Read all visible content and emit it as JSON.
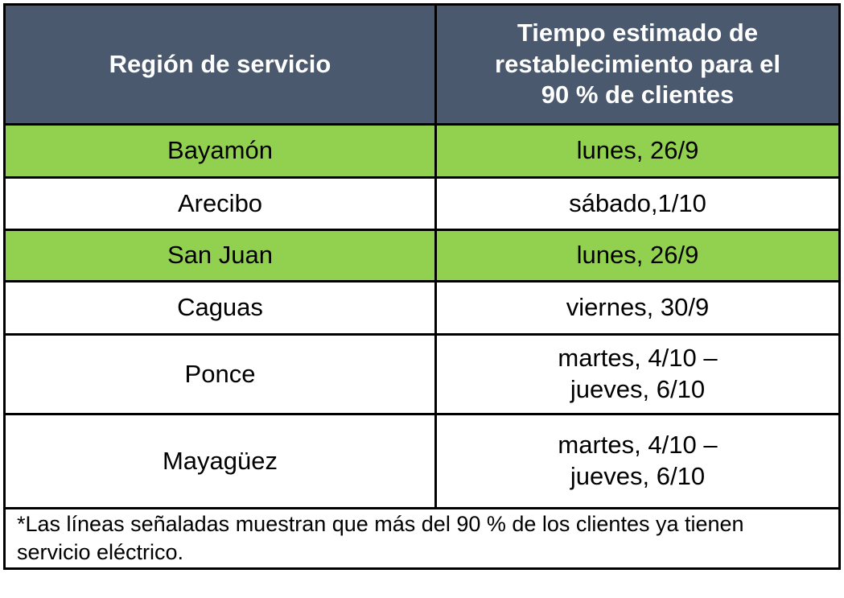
{
  "display": {
    "headers": {
      "region": "Región de servicio",
      "time": "Tiempo estimado de\nrestablecimiento para el\n90 % de clientes"
    },
    "rows": [
      {
        "region": "Bayamón",
        "time": "lunes, 26/9",
        "highlighted": true
      },
      {
        "region": "Arecibo",
        "time": "sábado,1/10",
        "highlighted": false
      },
      {
        "region": "San Juan",
        "time": "lunes, 26/9",
        "highlighted": true
      },
      {
        "region": "Caguas",
        "time": "viernes, 30/9",
        "highlighted": false
      },
      {
        "region": "Ponce",
        "time": "martes, 4/10 –\njueves, 6/10",
        "highlighted": false
      },
      {
        "region": "Mayagüez",
        "time": "martes, 4/10 –\njueves, 6/10",
        "highlighted": false
      }
    ],
    "footnote": "*Las líneas señaladas muestran que más del 90 % de los clientes ya tienen\nservicio eléctrico."
  },
  "chart_data": {
    "type": "table",
    "columns": [
      "Región de servicio",
      "Tiempo estimado de restablecimiento para el 90 % de clientes"
    ],
    "rows": [
      [
        "Bayamón",
        "lunes, 26/9"
      ],
      [
        "Arecibo",
        "sábado,1/10"
      ],
      [
        "San Juan",
        "lunes, 26/9"
      ],
      [
        "Caguas",
        "viernes, 30/9"
      ],
      [
        "Ponce",
        "martes, 4/10 – jueves, 6/10"
      ],
      [
        "Mayagüez",
        "martes, 4/10 – jueves, 6/10"
      ]
    ],
    "highlighted_rows": [
      "Bayamón",
      "San Juan"
    ],
    "footnote": "*Las líneas señaladas muestran que más del 90 % de los clientes ya tienen servicio eléctrico.",
    "legend_position": "none",
    "grid": true
  },
  "colors": {
    "header_bg": "#4a596d",
    "header_text": "#ffffff",
    "highlight_green": "#92d050",
    "border_color": "#000000",
    "text_color": "#000000",
    "page_bg": "#ffffff"
  }
}
